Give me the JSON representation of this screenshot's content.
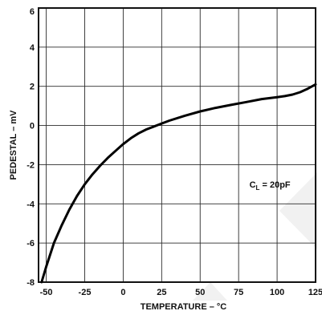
{
  "chart_data": {
    "type": "line",
    "title": "",
    "xlabel": "TEMPERATURE – °C",
    "ylabel": "PEDESTAL – mV",
    "xlim": [
      -55,
      125
    ],
    "ylim": [
      -8,
      6
    ],
    "grid": true,
    "x_ticks": [
      -50,
      -25,
      0,
      25,
      50,
      75,
      100,
      125
    ],
    "y_ticks": [
      -8,
      -6,
      -4,
      -2,
      0,
      2,
      4,
      6
    ],
    "x_tick_labels": [
      "-50",
      "-25",
      "0",
      "25",
      "50",
      "75",
      "100",
      "125"
    ],
    "y_tick_labels": [
      "-8",
      "-6",
      "-4",
      "-2",
      "0",
      "2",
      "4",
      "6"
    ],
    "annotation": {
      "prefix": "C",
      "subscript": "L",
      "suffix": " = 20pF"
    },
    "series": [
      {
        "x": [
          -53,
          -50,
          -45,
          -40,
          -35,
          -30,
          -25,
          -20,
          -15,
          -10,
          -5,
          0,
          5,
          10,
          15,
          20,
          25,
          30,
          40,
          50,
          60,
          70,
          80,
          90,
          100,
          105,
          110,
          115,
          120,
          125
        ],
        "values": [
          -8.0,
          -7.2,
          -6.0,
          -5.1,
          -4.3,
          -3.6,
          -3.0,
          -2.5,
          -2.05,
          -1.65,
          -1.3,
          -0.95,
          -0.65,
          -0.4,
          -0.2,
          -0.05,
          0.1,
          0.25,
          0.5,
          0.72,
          0.9,
          1.05,
          1.2,
          1.35,
          1.45,
          1.5,
          1.58,
          1.7,
          1.88,
          2.1
        ]
      }
    ]
  }
}
